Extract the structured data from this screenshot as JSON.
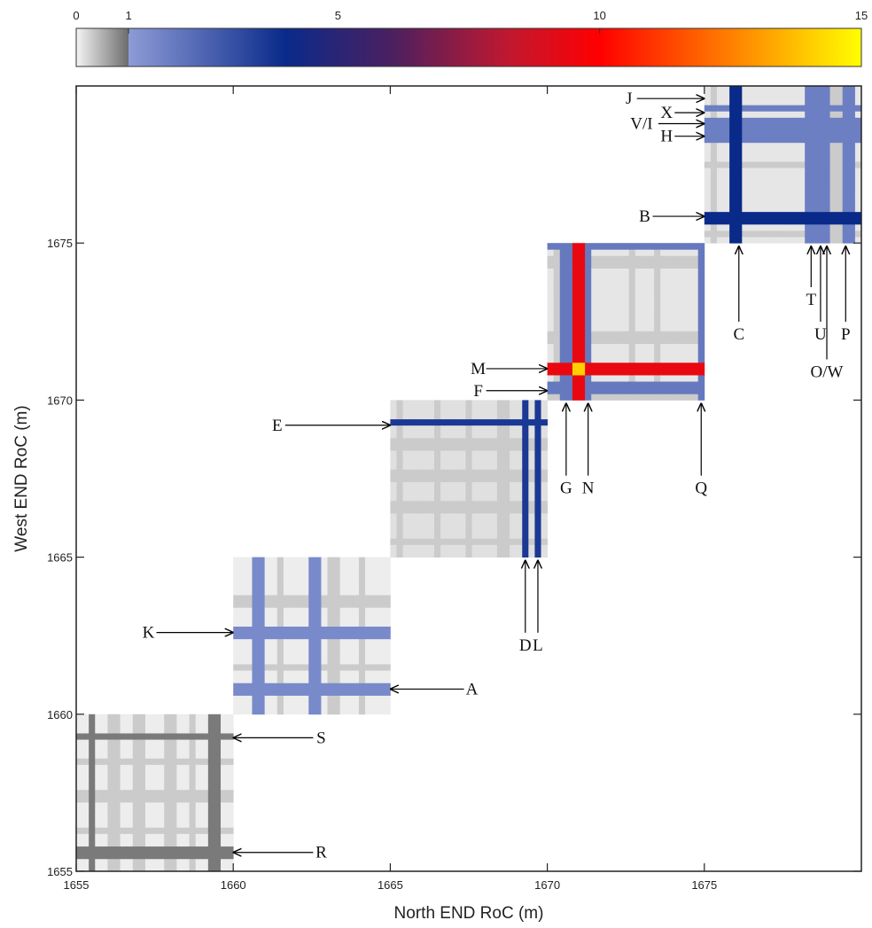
{
  "chart_data": {
    "type": "heatmap",
    "xlabel": "North END RoC (m)",
    "ylabel": "West END RoC (m)",
    "xlim": [
      1655,
      1680
    ],
    "ylim": [
      1655,
      1680
    ],
    "x_ticks": [
      "1655",
      "1660",
      "1665",
      "1670",
      "1675"
    ],
    "y_ticks": [
      "1655",
      "1660",
      "1665",
      "1670",
      "1675"
    ],
    "colorbar": {
      "min": 0,
      "max": 15,
      "ticks": [
        "0",
        "1",
        "5",
        "10",
        "15"
      ],
      "colors": {
        "zero": "#f4f4f4",
        "one_low": "#c8c8c8",
        "one_high": "#6c6c6c",
        "blue_light": "#8d9bd6",
        "blue_deep": "#0a2a8a",
        "purple": "#4a2060",
        "crimson": "#c01830",
        "red": "#ff0000",
        "orange": "#ff8c00",
        "yellow": "#ffff00"
      }
    },
    "blocks": [
      {
        "range": [
          1655,
          1660
        ],
        "base": 0.05,
        "cross_x": [
          1655.5,
          1659.4
        ],
        "cross_y": [
          1655.6,
          1659.3
        ],
        "cross_value": 0.9,
        "faint_x": [
          1656.2,
          1657.0,
          1658.0,
          1658.7
        ],
        "faint_y": [
          1656.3,
          1657.4,
          1658.5
        ]
      },
      {
        "range": [
          1660,
          1665
        ],
        "base": 0.05,
        "cross_x": [
          1660.8,
          1662.6
        ],
        "cross_y": [
          1660.8,
          1662.6
        ],
        "cross_value": 1.6,
        "faint_x": [
          1661.5,
          1663.2,
          1664.1
        ],
        "faint_y": [
          1661.5,
          1663.6
        ]
      },
      {
        "range": [
          1665,
          1670
        ],
        "base": 0.15,
        "cross_x": [
          1669.3,
          1669.7
        ],
        "cross_y": [
          1669.3
        ],
        "cross_value": 4.5,
        "faint_x": [
          1665.3,
          1666.5,
          1667.5,
          1668.6
        ],
        "faint_y": [
          1665.5,
          1666.6,
          1667.6,
          1668.6
        ]
      },
      {
        "range": [
          1670,
          1675
        ],
        "base": 0.1,
        "cross_x": [
          1671.0
        ],
        "cross_y": [
          1671.0
        ],
        "cross_value": 9.5,
        "secondary_x": [
          1670.6,
          1671.2,
          1674.9
        ],
        "secondary_y": [
          1670.4,
          1674.9
        ],
        "secondary_value": 2.2,
        "peak": [
          1671.0,
          1671.0
        ],
        "faint_x": [
          1670.3,
          1672.7,
          1673.5
        ],
        "faint_y": [
          1670.2,
          1672.0,
          1674.4
        ]
      },
      {
        "range": [
          1675,
          1680
        ],
        "base": 0.1,
        "cross_x": [
          1676.0
        ],
        "cross_y": [
          1675.8
        ],
        "cross_value": 5.0,
        "secondary_x": [
          1678.4,
          1678.7,
          1678.9,
          1679.6
        ],
        "secondary_y": [
          1678.3,
          1678.6,
          1678.9,
          1679.3
        ],
        "secondary_value": 2.0,
        "faint_x": [
          1675.3,
          1679.2
        ],
        "faint_y": [
          1675.3,
          1677.5
        ]
      }
    ],
    "annotations": [
      {
        "label": "J",
        "dir": "right",
        "text_x": 1672.6,
        "text_y": 1679.6,
        "tip_x": 1675.0,
        "tip_y": 1679.6
      },
      {
        "label": "X",
        "dir": "right",
        "text_x": 1673.8,
        "text_y": 1679.15,
        "tip_x": 1675.0,
        "tip_y": 1679.15
      },
      {
        "label": "V/I",
        "dir": "right",
        "text_x": 1673.0,
        "text_y": 1678.8,
        "tip_x": 1675.0,
        "tip_y": 1678.8
      },
      {
        "label": "H",
        "dir": "right",
        "text_x": 1673.8,
        "text_y": 1678.4,
        "tip_x": 1675.0,
        "tip_y": 1678.4
      },
      {
        "label": "B",
        "dir": "right",
        "text_x": 1673.1,
        "text_y": 1675.85,
        "tip_x": 1675.0,
        "tip_y": 1675.85
      },
      {
        "label": "C",
        "dir": "up",
        "text_x": 1676.1,
        "text_y": 1672.1,
        "tip_x": 1676.1,
        "tip_y": 1674.9
      },
      {
        "label": "T",
        "dir": "up",
        "text_x": 1678.4,
        "text_y": 1673.2,
        "tip_x": 1678.4,
        "tip_y": 1674.9
      },
      {
        "label": "U",
        "dir": "up",
        "text_x": 1678.7,
        "text_y": 1672.1,
        "tip_x": 1678.7,
        "tip_y": 1674.9
      },
      {
        "label": "O/W",
        "dir": "up",
        "text_x": 1678.9,
        "text_y": 1670.9,
        "tip_x": 1678.9,
        "tip_y": 1674.9
      },
      {
        "label": "P",
        "dir": "up",
        "text_x": 1679.5,
        "text_y": 1672.1,
        "tip_x": 1679.5,
        "tip_y": 1674.9
      },
      {
        "label": "M",
        "dir": "right",
        "text_x": 1667.8,
        "text_y": 1671.0,
        "tip_x": 1670.0,
        "tip_y": 1671.0
      },
      {
        "label": "F",
        "dir": "right",
        "text_x": 1667.8,
        "text_y": 1670.3,
        "tip_x": 1670.0,
        "tip_y": 1670.3
      },
      {
        "label": "E",
        "dir": "right",
        "text_x": 1661.4,
        "text_y": 1669.2,
        "tip_x": 1665.0,
        "tip_y": 1669.2
      },
      {
        "label": "G",
        "dir": "up",
        "text_x": 1670.6,
        "text_y": 1667.2,
        "tip_x": 1670.6,
        "tip_y": 1669.9
      },
      {
        "label": "N",
        "dir": "up",
        "text_x": 1671.3,
        "text_y": 1667.2,
        "tip_x": 1671.3,
        "tip_y": 1669.9
      },
      {
        "label": "Q",
        "dir": "up",
        "text_x": 1674.9,
        "text_y": 1667.2,
        "tip_x": 1674.9,
        "tip_y": 1669.9
      },
      {
        "label": "D",
        "dir": "up",
        "text_x": 1669.3,
        "text_y": 1662.2,
        "tip_x": 1669.3,
        "tip_y": 1664.9
      },
      {
        "label": "L",
        "dir": "up",
        "text_x": 1669.7,
        "text_y": 1662.2,
        "tip_x": 1669.7,
        "tip_y": 1664.9
      },
      {
        "label": "K",
        "dir": "right",
        "text_x": 1657.3,
        "text_y": 1662.6,
        "tip_x": 1660.0,
        "tip_y": 1662.6
      },
      {
        "label": "A",
        "dir": "left",
        "text_x": 1667.6,
        "text_y": 1660.8,
        "tip_x": 1665.0,
        "tip_y": 1660.8
      },
      {
        "label": "S",
        "dir": "left",
        "text_x": 1662.8,
        "text_y": 1659.25,
        "tip_x": 1660.0,
        "tip_y": 1659.25
      },
      {
        "label": "R",
        "dir": "left",
        "text_x": 1662.8,
        "text_y": 1655.6,
        "tip_x": 1660.0,
        "tip_y": 1655.6
      }
    ]
  }
}
